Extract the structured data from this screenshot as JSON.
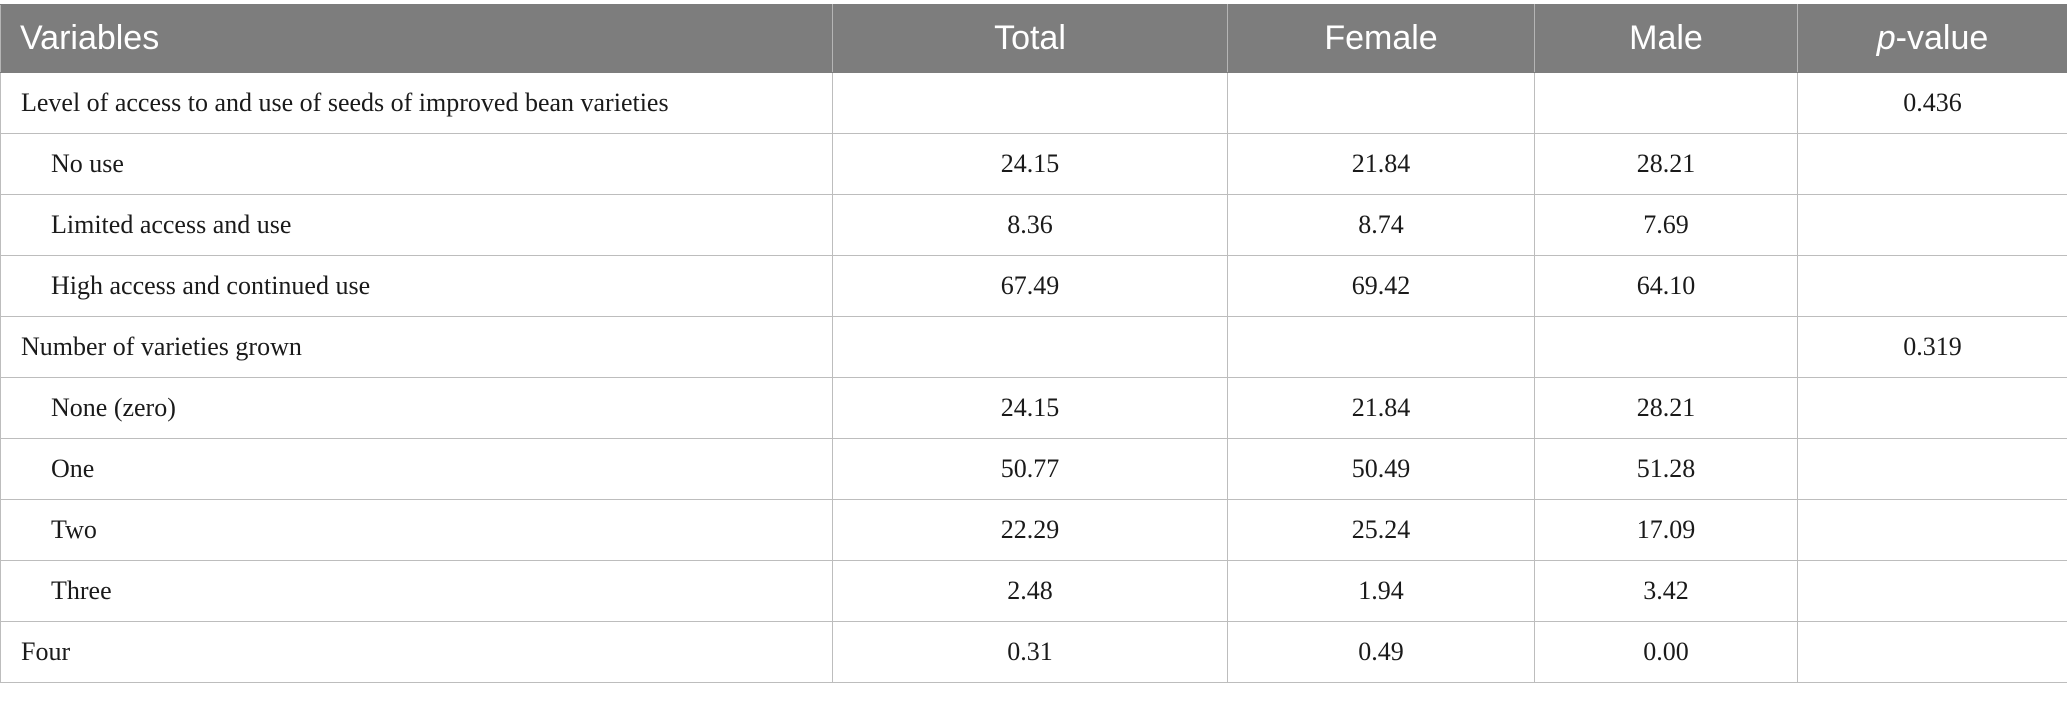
{
  "table": {
    "headers": {
      "variables": "Variables",
      "total": "Total",
      "female": "Female",
      "male": "Male",
      "pvalue_p": "p",
      "pvalue_rest": "-value"
    },
    "rows": [
      {
        "label": "Level of access to and use of seeds of improved bean varieties",
        "total": "",
        "female": "",
        "male": "",
        "pvalue": "0.436"
      },
      {
        "label": "No use",
        "total": "24.15",
        "female": "21.84",
        "male": "28.21",
        "pvalue": ""
      },
      {
        "label": "Limited access and use",
        "total": "8.36",
        "female": "8.74",
        "male": "7.69",
        "pvalue": ""
      },
      {
        "label": "High access and continued use",
        "total": "67.49",
        "female": "69.42",
        "male": "64.10",
        "pvalue": ""
      },
      {
        "label": "Number of varieties grown",
        "total": "",
        "female": "",
        "male": "",
        "pvalue": "0.319"
      },
      {
        "label": "None (zero)",
        "total": "24.15",
        "female": "21.84",
        "male": "28.21",
        "pvalue": ""
      },
      {
        "label": "One",
        "total": "50.77",
        "female": "50.49",
        "male": "51.28",
        "pvalue": ""
      },
      {
        "label": "Two",
        "total": "22.29",
        "female": "25.24",
        "male": "17.09",
        "pvalue": ""
      },
      {
        "label": "Three",
        "total": "2.48",
        "female": "1.94",
        "male": "3.42",
        "pvalue": ""
      },
      {
        "label": "Four",
        "total": "0.31",
        "female": "0.49",
        "male": "0.00",
        "pvalue": ""
      }
    ]
  }
}
